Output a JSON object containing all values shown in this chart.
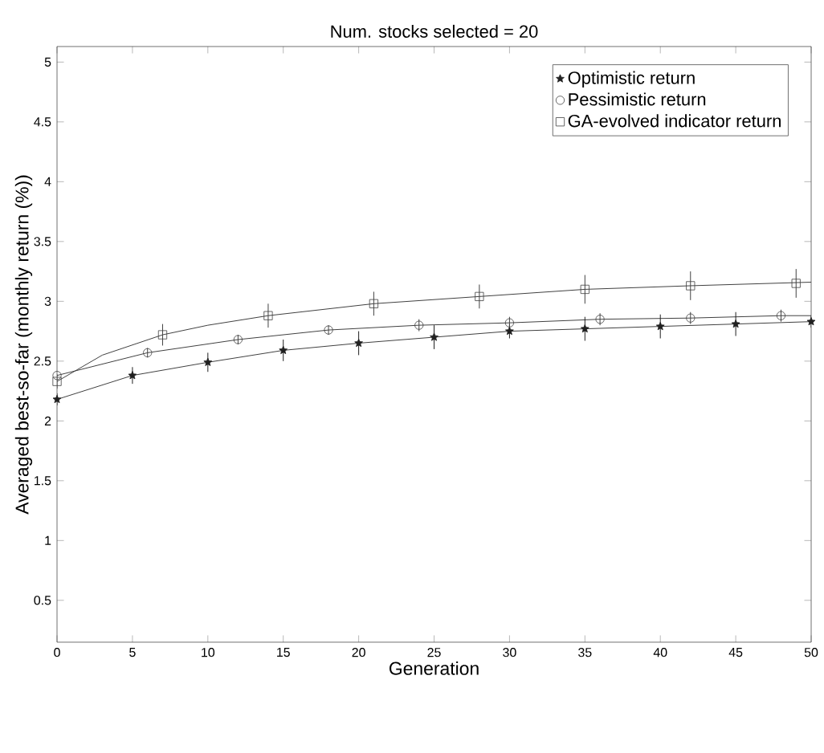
{
  "chart_data": {
    "type": "line",
    "title": "Num. stocks selected = 20",
    "xlabel": "Generation",
    "ylabel": "Averaged best-so-far (monthly return (%))",
    "xlim": [
      0,
      50
    ],
    "ylim": [
      0.15,
      5.13
    ],
    "xticks": [
      0,
      5,
      10,
      15,
      20,
      25,
      30,
      35,
      40,
      45,
      50
    ],
    "yticks": [
      0.5,
      1,
      1.5,
      2,
      2.5,
      3,
      3.5,
      4,
      4.5,
      5
    ],
    "grid": false,
    "legend": "top right",
    "series": [
      {
        "type": "line",
        "marker": "none",
        "color": "#404040",
        "x": [
          0,
          5,
          10,
          15,
          20,
          25,
          30,
          35,
          40,
          45,
          50
        ],
        "values": [
          2.18,
          2.38,
          2.49,
          2.59,
          2.65,
          2.7,
          2.75,
          2.77,
          2.79,
          2.81,
          2.83
        ]
      },
      {
        "type": "line",
        "marker": "none",
        "color": "#404040",
        "x": [
          0,
          6,
          12,
          18,
          24,
          30,
          36,
          42,
          48,
          50
        ],
        "values": [
          2.38,
          2.57,
          2.68,
          2.76,
          2.8,
          2.82,
          2.85,
          2.86,
          2.88,
          2.88
        ]
      },
      {
        "type": "line",
        "marker": "none",
        "color": "#404040",
        "x": [
          0,
          3,
          7,
          10,
          14,
          21,
          28,
          35,
          42,
          50
        ],
        "values": [
          2.33,
          2.55,
          2.72,
          2.8,
          2.88,
          2.98,
          3.04,
          3.1,
          3.13,
          3.16
        ]
      },
      {
        "type": "scatter",
        "marker": "star",
        "name": "Optimistic return",
        "color": "#202020",
        "x": [
          0,
          5,
          10,
          15,
          20,
          25,
          30,
          35,
          40,
          45,
          50
        ],
        "values": [
          2.18,
          2.38,
          2.49,
          2.59,
          2.65,
          2.7,
          2.75,
          2.77,
          2.79,
          2.81,
          2.83
        ],
        "errors": [
          0.05,
          0.07,
          0.08,
          0.09,
          0.1,
          0.1,
          0.06,
          0.1,
          0.1,
          0.1,
          0.05
        ]
      },
      {
        "type": "scatter",
        "marker": "circle",
        "name": "Pessimistic return",
        "color": "#404040",
        "x": [
          0,
          6,
          12,
          18,
          24,
          30,
          36,
          42,
          48
        ],
        "values": [
          2.38,
          2.57,
          2.68,
          2.76,
          2.8,
          2.82,
          2.85,
          2.86,
          2.88
        ],
        "errors": [
          null,
          0.04,
          0.04,
          0.04,
          0.05,
          0.05,
          0.05,
          0.05,
          0.05
        ]
      },
      {
        "type": "scatter",
        "marker": "square",
        "name": "GA-evolved indicator return",
        "color": "#404040",
        "x": [
          0,
          7,
          14,
          21,
          28,
          35,
          42,
          49
        ],
        "values": [
          2.33,
          2.72,
          2.88,
          2.98,
          3.04,
          3.1,
          3.13,
          3.15
        ],
        "errors": [
          0.06,
          0.09,
          0.1,
          0.1,
          0.1,
          0.12,
          0.12,
          0.12
        ]
      }
    ]
  }
}
